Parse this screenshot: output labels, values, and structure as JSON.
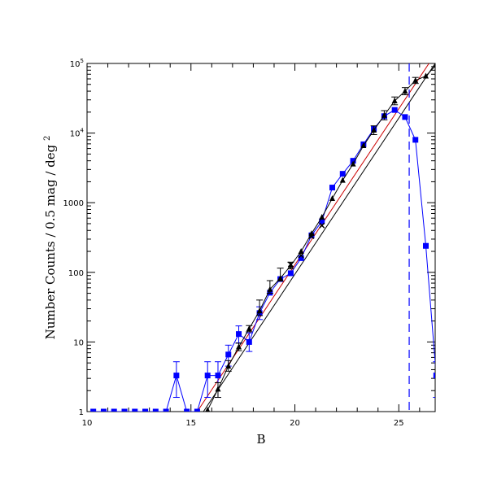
{
  "chart_data": {
    "type": "line",
    "xlabel": "B",
    "ylabel": "Number Counts / 0.5 mag / deg",
    "ylabel_exponent": "2",
    "xlim": [
      10,
      26.75
    ],
    "ylim": [
      1,
      100000
    ],
    "yscale": "log",
    "grid": false,
    "x_ticks": [
      {
        "value": 10,
        "label": "10"
      },
      {
        "value": 15,
        "label": "15"
      },
      {
        "value": 20,
        "label": "20"
      },
      {
        "value": 25,
        "label": "25"
      }
    ],
    "y_ticks": [
      {
        "value": 1,
        "label": "1",
        "exp": ""
      },
      {
        "value": 10,
        "label": "10",
        "exp": ""
      },
      {
        "value": 100,
        "label": "100",
        "exp": ""
      },
      {
        "value": 1000,
        "label": "1000",
        "exp": ""
      },
      {
        "value": 10000,
        "label": "10",
        "exp": "4"
      },
      {
        "value": 100000,
        "label": "10",
        "exp": "5"
      }
    ],
    "colors": {
      "blue": "#0000ff",
      "black": "#000000",
      "red": "#cc0000"
    },
    "series": [
      {
        "color": "#0000ff",
        "marker": "square",
        "points": [
          {
            "x": 10.3,
            "y": 1
          },
          {
            "x": 10.8,
            "y": 1
          },
          {
            "x": 11.3,
            "y": 1
          },
          {
            "x": 11.8,
            "y": 1
          },
          {
            "x": 12.3,
            "y": 1
          },
          {
            "x": 12.8,
            "y": 1
          },
          {
            "x": 13.3,
            "y": 1
          },
          {
            "x": 13.8,
            "y": 1
          },
          {
            "x": 14.3,
            "y": 3.3,
            "lo": 1.6,
            "hi": 5.2
          },
          {
            "x": 14.8,
            "y": 1
          },
          {
            "x": 15.3,
            "y": 1
          },
          {
            "x": 15.8,
            "y": 3.3,
            "lo": 1.6,
            "hi": 5.2
          },
          {
            "x": 16.3,
            "y": 3.3,
            "lo": 1.6,
            "hi": 5.2
          },
          {
            "x": 16.8,
            "y": 6.6,
            "lo": 4.5,
            "hi": 9.0
          },
          {
            "x": 17.3,
            "y": 13,
            "lo": 9.7,
            "hi": 17
          },
          {
            "x": 17.8,
            "y": 10,
            "lo": 7.3,
            "hi": 13.5
          },
          {
            "x": 18.3,
            "y": 26,
            "lo": 21,
            "hi": 32
          },
          {
            "x": 18.8,
            "y": 51
          },
          {
            "x": 19.3,
            "y": 80
          },
          {
            "x": 19.8,
            "y": 97
          },
          {
            "x": 20.3,
            "y": 160
          },
          {
            "x": 20.8,
            "y": 340
          },
          {
            "x": 21.3,
            "y": 540
          },
          {
            "x": 21.8,
            "y": 1650
          },
          {
            "x": 22.3,
            "y": 2600
          },
          {
            "x": 22.8,
            "y": 4000
          },
          {
            "x": 23.3,
            "y": 6900
          },
          {
            "x": 23.8,
            "y": 11500
          },
          {
            "x": 24.3,
            "y": 17500
          },
          {
            "x": 24.8,
            "y": 21500
          },
          {
            "x": 25.3,
            "y": 17000
          },
          {
            "x": 25.8,
            "y": 8000
          },
          {
            "x": 26.3,
            "y": 240
          },
          {
            "x": 26.8,
            "y": 3.3,
            "lo": 1.6,
            "hi": 5.2
          }
        ]
      },
      {
        "color": "#000000",
        "marker": "triangle",
        "points": [
          {
            "x": 15.8,
            "y": 1.05
          },
          {
            "x": 16.3,
            "y": 2.1,
            "lo": 1.6,
            "hi": 2.6
          },
          {
            "x": 16.8,
            "y": 4.5,
            "lo": 3.8,
            "hi": 5.4
          },
          {
            "x": 17.3,
            "y": 8.5,
            "lo": 7.5,
            "hi": 9.6
          },
          {
            "x": 17.8,
            "y": 15.5,
            "lo": 14,
            "hi": 17.2
          },
          {
            "x": 18.3,
            "y": 28,
            "lo": 24,
            "hi": 40
          },
          {
            "x": 18.8,
            "y": 57,
            "lo": 50,
            "hi": 76
          },
          {
            "x": 19.3,
            "y": 82,
            "lo": 75,
            "hi": 115
          },
          {
            "x": 19.8,
            "y": 125,
            "lo": 112,
            "hi": 140
          },
          {
            "x": 20.3,
            "y": 200
          },
          {
            "x": 20.8,
            "y": 360
          },
          {
            "x": 21.3,
            "y": 620
          },
          {
            "x": 21.8,
            "y": 1150
          },
          {
            "x": 22.3,
            "y": 2100
          },
          {
            "x": 22.8,
            "y": 3600
          },
          {
            "x": 23.3,
            "y": 6600
          },
          {
            "x": 23.8,
            "y": 11000,
            "lo": 9500,
            "hi": 12700
          },
          {
            "x": 24.3,
            "y": 18000,
            "lo": 15500,
            "hi": 21000
          },
          {
            "x": 24.8,
            "y": 29000,
            "lo": 25500,
            "hi": 33000
          },
          {
            "x": 25.3,
            "y": 40000,
            "lo": 35500,
            "hi": 45000
          },
          {
            "x": 25.8,
            "y": 57000,
            "lo": 51500,
            "hi": 63000
          },
          {
            "x": 26.3,
            "y": 66000
          },
          {
            "x": 26.8,
            "y": 95000
          }
        ]
      },
      {
        "color": "#000000",
        "marker": "cross",
        "points": [
          {
            "x": 19.8,
            "y": 130
          },
          {
            "x": 20.3,
            "y": 175
          },
          {
            "x": 20.8,
            "y": 330
          },
          {
            "x": 21.3,
            "y": 470
          }
        ]
      }
    ],
    "fit_lines": [
      {
        "color": "#cc0000",
        "from": {
          "x": 15.3,
          "y": 1
        },
        "to": {
          "x": 26.45,
          "y": 100000
        }
      },
      {
        "color": "#000000",
        "from": {
          "x": 15.6,
          "y": 1
        },
        "to": {
          "x": 26.75,
          "y": 100000
        }
      }
    ],
    "vline": {
      "x": 25.5,
      "color": "#0000ff",
      "style": "dashed"
    }
  }
}
